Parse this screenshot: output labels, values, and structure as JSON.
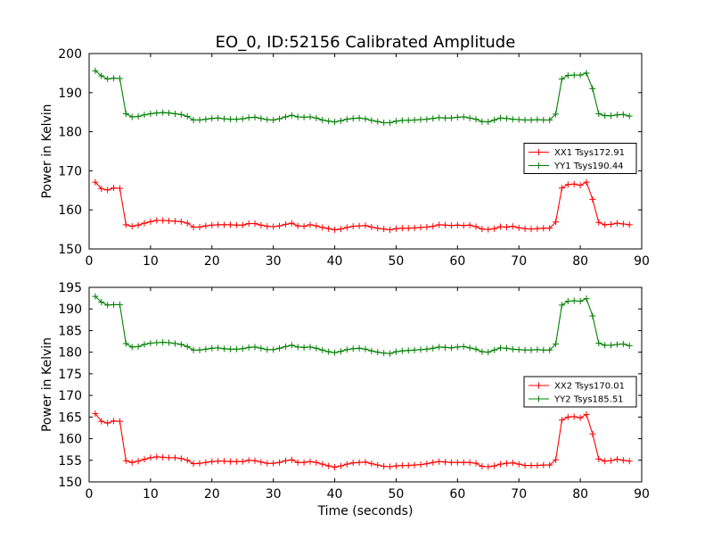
{
  "figure": {
    "title": "EO_0, ID:52156 Calibrated Amplitude"
  },
  "colors": {
    "xx": "#ff0000",
    "yy": "#008000",
    "axes": "#000000",
    "background": "#ffffff"
  },
  "chart_data": [
    {
      "type": "line",
      "title": "EO_0, ID:52156 Calibrated Amplitude",
      "xlabel": "",
      "ylabel": "Power in Kelvin",
      "xlim": [
        0,
        90
      ],
      "ylim": [
        150,
        200
      ],
      "xticks": [
        0,
        10,
        20,
        30,
        40,
        50,
        60,
        70,
        80,
        90
      ],
      "yticks": [
        150,
        160,
        170,
        180,
        190,
        200
      ],
      "grid": false,
      "legend_position": "center-right",
      "marker": "+",
      "series": [
        {
          "name": "XX1 Tsys172.91",
          "color": "#ff0000",
          "x": [
            1,
            2,
            3,
            4,
            5,
            6,
            7,
            8,
            9,
            10,
            11,
            12,
            13,
            14,
            15,
            16,
            17,
            18,
            19,
            20,
            21,
            22,
            23,
            24,
            25,
            26,
            27,
            28,
            29,
            30,
            31,
            32,
            33,
            34,
            35,
            36,
            37,
            38,
            39,
            40,
            41,
            42,
            43,
            44,
            45,
            46,
            47,
            48,
            49,
            50,
            51,
            52,
            53,
            54,
            55,
            56,
            57,
            58,
            59,
            60,
            61,
            62,
            63,
            64,
            65,
            66,
            67,
            68,
            69,
            70,
            71,
            72,
            73,
            74,
            75,
            76,
            77,
            78,
            79,
            80,
            81,
            82,
            83,
            84,
            85,
            86,
            87,
            88
          ],
          "y": [
            167.1,
            165.4,
            165.1,
            165.6,
            165.5,
            156.2,
            155.8,
            156.1,
            156.6,
            157.0,
            157.3,
            157.3,
            157.2,
            157.1,
            157.0,
            156.6,
            155.6,
            155.6,
            155.9,
            156.1,
            156.2,
            156.2,
            156.2,
            156.1,
            156.1,
            156.5,
            156.5,
            156.1,
            155.8,
            155.7,
            155.9,
            156.3,
            156.6,
            155.9,
            155.8,
            156.2,
            155.9,
            155.5,
            155.2,
            154.9,
            155.1,
            155.5,
            155.8,
            155.9,
            156.0,
            155.6,
            155.3,
            155.1,
            154.9,
            155.2,
            155.3,
            155.3,
            155.4,
            155.5,
            155.6,
            155.8,
            156.2,
            156.1,
            156.0,
            156.1,
            156.0,
            156.1,
            155.7,
            155.1,
            155.0,
            155.2,
            155.7,
            155.6,
            155.8,
            155.4,
            155.2,
            155.1,
            155.2,
            155.3,
            155.3,
            156.9,
            165.6,
            166.5,
            166.6,
            166.3,
            167.1,
            162.7,
            156.8,
            156.2,
            156.3,
            156.6,
            156.4,
            156.2
          ]
        },
        {
          "name": "YY1 Tsys190.44",
          "color": "#008000",
          "x": [
            1,
            2,
            3,
            4,
            5,
            6,
            7,
            8,
            9,
            10,
            11,
            12,
            13,
            14,
            15,
            16,
            17,
            18,
            19,
            20,
            21,
            22,
            23,
            24,
            25,
            26,
            27,
            28,
            29,
            30,
            31,
            32,
            33,
            34,
            35,
            36,
            37,
            38,
            39,
            40,
            41,
            42,
            43,
            44,
            45,
            46,
            47,
            48,
            49,
            50,
            51,
            52,
            53,
            54,
            55,
            56,
            57,
            58,
            59,
            60,
            61,
            62,
            63,
            64,
            65,
            66,
            67,
            68,
            69,
            70,
            71,
            72,
            73,
            74,
            75,
            76,
            77,
            78,
            79,
            80,
            81,
            82,
            83,
            84,
            85,
            86,
            87,
            88
          ],
          "y": [
            195.6,
            194.3,
            193.5,
            193.7,
            193.6,
            184.6,
            183.8,
            183.9,
            184.3,
            184.6,
            184.8,
            184.9,
            184.8,
            184.6,
            184.4,
            183.9,
            183.0,
            183.0,
            183.2,
            183.4,
            183.5,
            183.3,
            183.2,
            183.2,
            183.3,
            183.6,
            183.7,
            183.4,
            183.1,
            183.0,
            183.3,
            183.8,
            184.2,
            183.8,
            183.7,
            183.8,
            183.5,
            183.0,
            182.7,
            182.5,
            182.8,
            183.2,
            183.4,
            183.5,
            183.3,
            182.9,
            182.6,
            182.3,
            182.3,
            182.7,
            182.9,
            182.9,
            183.0,
            183.1,
            183.2,
            183.4,
            183.6,
            183.5,
            183.5,
            183.7,
            183.8,
            183.5,
            183.2,
            182.6,
            182.5,
            183.0,
            183.5,
            183.4,
            183.2,
            183.1,
            183.0,
            183.0,
            183.1,
            183.0,
            183.0,
            184.5,
            193.5,
            194.4,
            194.5,
            194.5,
            195.0,
            191.0,
            184.6,
            184.1,
            184.1,
            184.3,
            184.4,
            184.0
          ]
        }
      ]
    },
    {
      "type": "line",
      "title": "",
      "xlabel": "Time (seconds)",
      "ylabel": "Power in Kelvin",
      "xlim": [
        0,
        90
      ],
      "ylim": [
        150,
        195
      ],
      "xticks": [
        0,
        10,
        20,
        30,
        40,
        50,
        60,
        70,
        80,
        90
      ],
      "yticks": [
        150,
        155,
        160,
        165,
        170,
        175,
        180,
        185,
        190,
        195
      ],
      "grid": false,
      "legend_position": "center-right",
      "marker": "+",
      "series": [
        {
          "name": "XX2 Tsys170.01",
          "color": "#ff0000",
          "x": [
            1,
            2,
            3,
            4,
            5,
            6,
            7,
            8,
            9,
            10,
            11,
            12,
            13,
            14,
            15,
            16,
            17,
            18,
            19,
            20,
            21,
            22,
            23,
            24,
            25,
            26,
            27,
            28,
            29,
            30,
            31,
            32,
            33,
            34,
            35,
            36,
            37,
            38,
            39,
            40,
            41,
            42,
            43,
            44,
            45,
            46,
            47,
            48,
            49,
            50,
            51,
            52,
            53,
            54,
            55,
            56,
            57,
            58,
            59,
            60,
            61,
            62,
            63,
            64,
            65,
            66,
            67,
            68,
            69,
            70,
            71,
            72,
            73,
            74,
            75,
            76,
            77,
            78,
            79,
            80,
            81,
            82,
            83,
            84,
            85,
            86,
            87,
            88
          ],
          "y": [
            165.8,
            164.0,
            163.6,
            164.1,
            164.0,
            154.9,
            154.5,
            154.8,
            155.2,
            155.6,
            155.8,
            155.7,
            155.6,
            155.6,
            155.4,
            155.0,
            154.2,
            154.3,
            154.5,
            154.7,
            154.8,
            154.8,
            154.7,
            154.7,
            154.7,
            155.0,
            154.9,
            154.6,
            154.3,
            154.3,
            154.5,
            154.9,
            155.1,
            154.5,
            154.5,
            154.7,
            154.5,
            154.1,
            153.7,
            153.4,
            153.7,
            154.1,
            154.4,
            154.5,
            154.6,
            154.2,
            153.9,
            153.6,
            153.5,
            153.7,
            153.8,
            153.8,
            153.9,
            154.0,
            154.2,
            154.5,
            154.7,
            154.6,
            154.5,
            154.5,
            154.5,
            154.5,
            154.3,
            153.6,
            153.5,
            153.7,
            154.1,
            154.3,
            154.4,
            154.1,
            153.8,
            153.8,
            153.8,
            153.9,
            153.9,
            155.1,
            164.3,
            165.0,
            165.1,
            164.8,
            165.6,
            161.1,
            155.3,
            154.8,
            154.9,
            155.2,
            155.0,
            154.8
          ]
        },
        {
          "name": "YY2 Tsys185.51",
          "color": "#008000",
          "x": [
            1,
            2,
            3,
            4,
            5,
            6,
            7,
            8,
            9,
            10,
            11,
            12,
            13,
            14,
            15,
            16,
            17,
            18,
            19,
            20,
            21,
            22,
            23,
            24,
            25,
            26,
            27,
            28,
            29,
            30,
            31,
            32,
            33,
            34,
            35,
            36,
            37,
            38,
            39,
            40,
            41,
            42,
            43,
            44,
            45,
            46,
            47,
            48,
            49,
            50,
            51,
            52,
            53,
            54,
            55,
            56,
            57,
            58,
            59,
            60,
            61,
            62,
            63,
            64,
            65,
            66,
            67,
            68,
            69,
            70,
            71,
            72,
            73,
            74,
            75,
            76,
            77,
            78,
            79,
            80,
            81,
            82,
            83,
            84,
            85,
            86,
            87,
            88
          ],
          "y": [
            192.9,
            191.6,
            190.9,
            191.0,
            191.0,
            182.0,
            181.2,
            181.3,
            181.8,
            182.1,
            182.2,
            182.3,
            182.2,
            182.0,
            181.8,
            181.3,
            180.5,
            180.5,
            180.7,
            180.9,
            181.0,
            180.8,
            180.7,
            180.7,
            180.8,
            181.1,
            181.2,
            180.9,
            180.6,
            180.6,
            180.9,
            181.3,
            181.6,
            181.2,
            181.1,
            181.2,
            180.9,
            180.5,
            180.1,
            179.9,
            180.2,
            180.6,
            180.8,
            180.9,
            180.7,
            180.3,
            180.0,
            179.8,
            179.7,
            180.1,
            180.3,
            180.4,
            180.5,
            180.6,
            180.7,
            180.9,
            181.2,
            181.1,
            181.0,
            181.2,
            181.3,
            181.0,
            180.7,
            180.1,
            180.0,
            180.5,
            181.0,
            180.9,
            180.7,
            180.6,
            180.5,
            180.5,
            180.6,
            180.5,
            180.5,
            181.9,
            190.9,
            191.8,
            191.9,
            191.8,
            192.4,
            188.4,
            182.1,
            181.6,
            181.6,
            181.8,
            181.9,
            181.5
          ]
        }
      ]
    }
  ]
}
